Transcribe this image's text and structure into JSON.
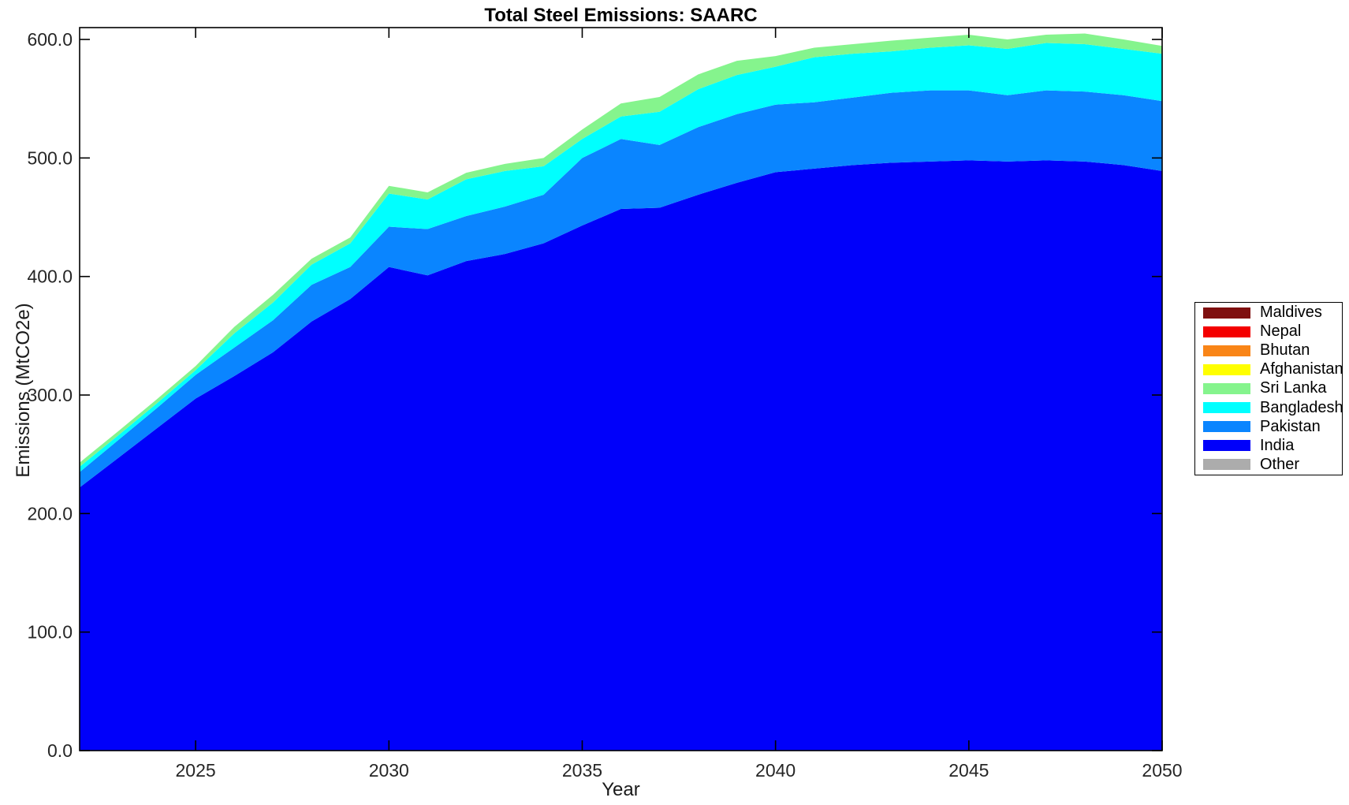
{
  "chart_data": {
    "type": "area",
    "stacked": true,
    "title": "Total Steel Emissions: SAARC",
    "xlabel": "Year",
    "ylabel": "Emissions (MtCO2e)",
    "xlim": [
      2022,
      2050
    ],
    "ylim": [
      0,
      610
    ],
    "x_ticks": [
      2025,
      2030,
      2035,
      2040,
      2045,
      2050
    ],
    "y_ticks": [
      0,
      100,
      200,
      300,
      400,
      500,
      600
    ],
    "y_tick_decimals": 1,
    "grid": false,
    "legend_position": "right-outside",
    "years": [
      2022,
      2023,
      2024,
      2025,
      2026,
      2027,
      2028,
      2029,
      2030,
      2031,
      2032,
      2033,
      2034,
      2035,
      2036,
      2037,
      2038,
      2039,
      2040,
      2041,
      2042,
      2043,
      2044,
      2045,
      2046,
      2047,
      2048,
      2049,
      2050
    ],
    "series": [
      {
        "name": "India",
        "color": "#0000FA",
        "values": [
          222,
          247,
          272,
          297,
          316,
          336,
          362,
          381,
          408,
          401,
          413,
          419,
          428,
          443,
          457,
          458,
          469,
          479,
          488,
          491,
          494,
          496,
          497,
          498,
          497,
          498,
          497,
          494,
          489
        ]
      },
      {
        "name": "Pakistan",
        "color": "#0A85FF",
        "values": [
          13,
          15,
          17,
          20,
          24,
          27,
          31,
          27,
          34,
          39,
          38,
          40,
          41,
          57,
          59,
          53,
          57,
          58,
          57,
          56,
          57,
          59,
          60,
          59,
          56,
          59,
          59,
          59,
          59
        ]
      },
      {
        "name": "Bangladesh",
        "color": "#00FFFF",
        "values": [
          4.5,
          4,
          4,
          4,
          12,
          15,
          17,
          20,
          28,
          25,
          31,
          30,
          24,
          16,
          19,
          28,
          32,
          33,
          32,
          38,
          37,
          35,
          36,
          38,
          39,
          40,
          40,
          39,
          40
        ]
      },
      {
        "name": "Sri Lanka",
        "color": "#85F48D",
        "values": [
          3.5,
          3.5,
          3.5,
          3.5,
          5.5,
          6.5,
          5,
          5,
          6.5,
          6,
          5.5,
          6,
          7,
          8,
          11,
          12.5,
          12.5,
          12,
          9,
          8,
          8,
          9,
          8.5,
          9,
          8,
          7,
          9,
          8,
          6.5
        ]
      },
      {
        "name": "Afghanistan",
        "color": "#FFFF00",
        "values": [
          0,
          0,
          0,
          0,
          0,
          0,
          0,
          0,
          0,
          0,
          0,
          0,
          0,
          0,
          0,
          0,
          0,
          0,
          0,
          0,
          0,
          0,
          0,
          0,
          0,
          0,
          0,
          0,
          0
        ]
      },
      {
        "name": "Bhutan",
        "color": "#F98517",
        "values": [
          0,
          0,
          0,
          0,
          0,
          0,
          0,
          0,
          0,
          0,
          0,
          0,
          0,
          0,
          0,
          0,
          0,
          0,
          0,
          0,
          0,
          0,
          0,
          0,
          0,
          0,
          0,
          0,
          0
        ]
      },
      {
        "name": "Nepal",
        "color": "#F40000",
        "values": [
          0,
          0,
          0,
          0,
          0,
          0,
          0,
          0,
          0,
          0,
          0,
          0,
          0,
          0,
          0,
          0,
          0,
          0,
          0,
          0,
          0,
          0,
          0,
          0,
          0,
          0,
          0,
          0,
          0
        ]
      },
      {
        "name": "Maldives",
        "color": "#7F1010",
        "values": [
          0,
          0,
          0,
          0,
          0,
          0,
          0,
          0,
          0,
          0,
          0,
          0,
          0,
          0,
          0,
          0,
          0,
          0,
          0,
          0,
          0,
          0,
          0,
          0,
          0,
          0,
          0,
          0,
          0
        ]
      },
      {
        "name": "Other",
        "color": "#ACACAC",
        "values": [
          0,
          0,
          0,
          0,
          0,
          0,
          0,
          0,
          0,
          0,
          0,
          0,
          0,
          0,
          0,
          0,
          0,
          0,
          0,
          0,
          0,
          0,
          0,
          0,
          0,
          0,
          0,
          0,
          0
        ]
      }
    ],
    "legend": [
      {
        "label": "Maldives",
        "color": "#7F1010"
      },
      {
        "label": "Nepal",
        "color": "#F40000"
      },
      {
        "label": "Bhutan",
        "color": "#F98517"
      },
      {
        "label": "Afghanistan",
        "color": "#FFFF00"
      },
      {
        "label": "Sri Lanka",
        "color": "#85F48D"
      },
      {
        "label": "Bangladesh",
        "color": "#00FFFF"
      },
      {
        "label": "Pakistan",
        "color": "#0A85FF"
      },
      {
        "label": "India",
        "color": "#0000FA"
      },
      {
        "label": "Other",
        "color": "#ACACAC"
      }
    ]
  }
}
